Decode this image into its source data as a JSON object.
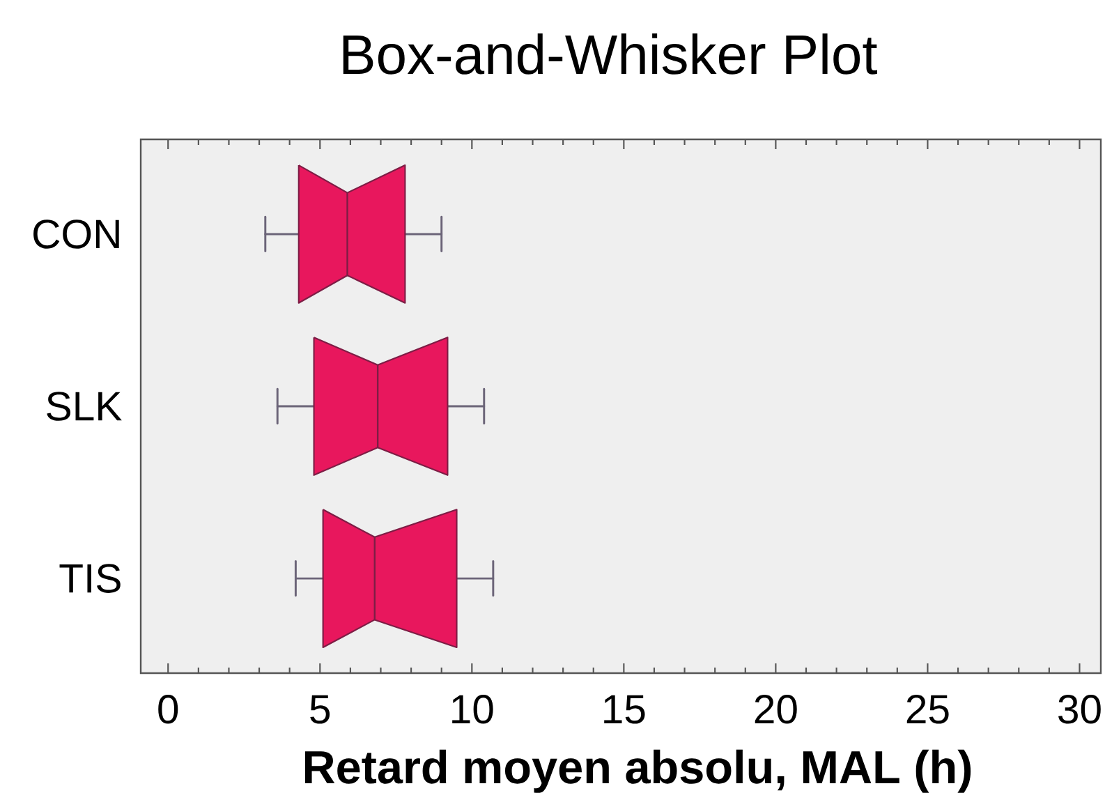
{
  "chart_data": {
    "type": "box",
    "title": "Box-and-Whisker Plot",
    "xlabel": "Retard moyen absolu, MAL (h)",
    "categories": [
      "CON",
      "SLK",
      "TIS"
    ],
    "orientation": "horizontal",
    "color": "#e8175d",
    "boxes": [
      {
        "low": 3.2,
        "q1": 4.3,
        "median": 5.9,
        "q3": 7.8,
        "high": 9.0
      },
      {
        "low": 3.6,
        "q1": 4.8,
        "median": 6.9,
        "q3": 9.2,
        "high": 10.4
      },
      {
        "low": 4.2,
        "q1": 5.1,
        "median": 6.8,
        "q3": 9.5,
        "high": 10.7
      }
    ],
    "xlim": [
      -0.9,
      30.7
    ],
    "xticks": [
      0,
      5,
      10,
      15,
      20,
      25,
      30
    ]
  }
}
